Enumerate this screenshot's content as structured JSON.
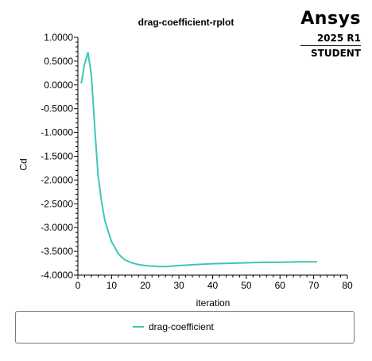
{
  "brand": {
    "name": "Ansys",
    "version": "2025 R1",
    "edition": "STUDENT"
  },
  "colors": {
    "series": "#3cc8b4",
    "axis": "#000000",
    "legend_border": "#7a7a7a"
  },
  "chart_data": {
    "type": "line",
    "title": "drag-coefficient-rplot",
    "xlabel": "iteration",
    "ylabel": "Cd",
    "xlim": [
      0,
      80
    ],
    "ylim": [
      -4,
      1
    ],
    "xticks": [
      0,
      10,
      20,
      30,
      40,
      50,
      60,
      70,
      80
    ],
    "yticks": [
      1.0,
      0.5,
      0.0,
      -0.5,
      -1.0,
      -1.5,
      -2.0,
      -2.5,
      -3.0,
      -3.5,
      -4.0
    ],
    "xtick_labels": [
      "0",
      "10",
      "20",
      "30",
      "40",
      "50",
      "60",
      "70",
      "80"
    ],
    "ytick_labels": [
      "1.0000",
      "0.5000",
      "0.0000",
      "-0.5000",
      "-1.0000",
      "-1.5000",
      "-2.0000",
      "-2.5000",
      "-3.0000",
      "-3.5000",
      "-4.0000"
    ],
    "grid": false,
    "legend_placement": "bottom",
    "series": [
      {
        "name": "drag-coefficient",
        "x": [
          1,
          2,
          3,
          4,
          5,
          6,
          7,
          8,
          9,
          10,
          11,
          12,
          13,
          14,
          15,
          16,
          17,
          18,
          19,
          20,
          22,
          24,
          26,
          28,
          30,
          35,
          40,
          45,
          50,
          55,
          60,
          65,
          71
        ],
        "y": [
          0.03,
          0.45,
          0.68,
          0.2,
          -0.9,
          -1.9,
          -2.45,
          -2.85,
          -3.08,
          -3.3,
          -3.42,
          -3.55,
          -3.62,
          -3.68,
          -3.71,
          -3.74,
          -3.76,
          -3.78,
          -3.79,
          -3.8,
          -3.81,
          -3.82,
          -3.82,
          -3.81,
          -3.8,
          -3.78,
          -3.76,
          -3.75,
          -3.74,
          -3.73,
          -3.73,
          -3.72,
          -3.72
        ]
      }
    ]
  }
}
